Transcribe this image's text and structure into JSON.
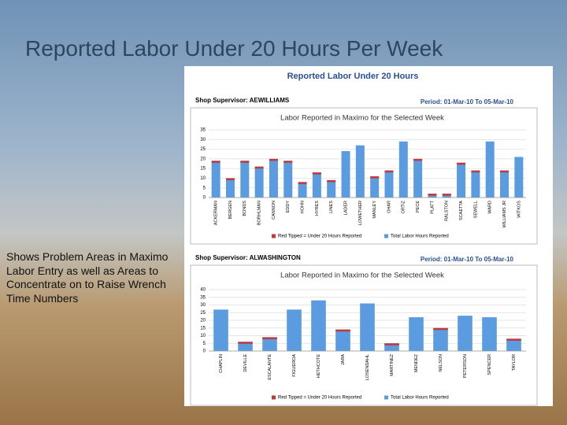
{
  "slide_title": "Reported Labor Under 20 Hours Per Week",
  "side_text": "Shows Problem Areas in Maximo Labor Entry as well as Areas to Concentrate on to Raise Wrench Time Numbers",
  "report_title": "Reported Labor Under 20 Hours",
  "chart_data": [
    {
      "type": "bar",
      "supervisor": "Shop Supervisor: AEWILLIAMS",
      "period": "Period: 01-Mar-10 To 05-Mar-10",
      "title": "Labor Reported in Maximo for the Selected Week",
      "categories": [
        "ACKERMAN",
        "BERGEN",
        "BONDS",
        "BORHLMAN",
        "CANNON",
        "EDDY",
        "HOHN",
        "HYRES",
        "LINES",
        "LADER",
        "LOWETHER",
        "MANLEY",
        "OHAR",
        "ORTIZ",
        "PECE",
        "PLATT",
        "RALSTON",
        "SCAETTA",
        "SEWELL",
        "WARD",
        "WILLIAMS JR",
        "WITKOS"
      ],
      "series": [
        {
          "name": "Red Tipped = Under 20 Hours Reported",
          "color": "#c0393b",
          "values": [
            19,
            10,
            19,
            16,
            20,
            19,
            8,
            13,
            9,
            null,
            null,
            11,
            14,
            null,
            20,
            2,
            2,
            18,
            14,
            null,
            14,
            null
          ]
        },
        {
          "name": "Total Labor Hours Reported",
          "color": "#5b9be0",
          "values": [
            19,
            10,
            19,
            16,
            20,
            19,
            8,
            13,
            9,
            24,
            27,
            11,
            14,
            29,
            20,
            2,
            2,
            18,
            14,
            29,
            14,
            21
          ]
        }
      ],
      "ylim": [
        0,
        35
      ],
      "yticks": [
        0,
        5,
        10,
        15,
        20,
        25,
        30,
        35
      ],
      "grid": true
    },
    {
      "type": "bar",
      "supervisor": "Shop Supervisor: ALWASHINGTON",
      "period": "Period: 01-Mar-10 To 05-Mar-10",
      "title": "Labor Reported in Maximo for the Selected Week",
      "categories": [
        "CHAPLIN",
        "DEVILLE",
        "ESCALANTE",
        "FIGUEROA",
        "HETHCOTE",
        "JARA",
        "LOSENDAHL",
        "MARTINEZ",
        "MENDEZ",
        "NELSON",
        "PETERSON",
        "SPENCER",
        "TAYLOR"
      ],
      "series": [
        {
          "name": "Red Tipped = Under 20 Hours Reported",
          "color": "#c0393b",
          "values": [
            null,
            6,
            9,
            null,
            null,
            14,
            null,
            5,
            null,
            15,
            null,
            null,
            8
          ]
        },
        {
          "name": "Total Labor Hours Reported",
          "color": "#5b9be0",
          "values": [
            27,
            6,
            9,
            27,
            33,
            14,
            31,
            5,
            22,
            15,
            23,
            22,
            8
          ]
        }
      ],
      "ylim": [
        0,
        40
      ],
      "yticks": [
        0,
        5,
        10,
        15,
        20,
        25,
        30,
        35,
        40
      ],
      "grid": true
    }
  ]
}
